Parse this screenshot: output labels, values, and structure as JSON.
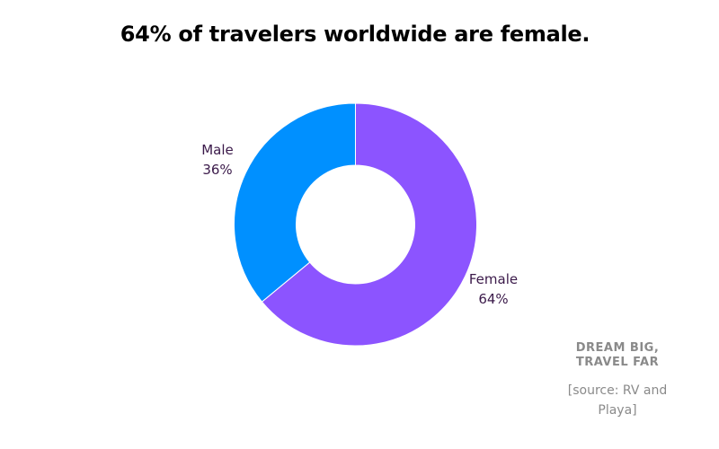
{
  "title": "64% of travelers worldwide are female.",
  "chart_data": {
    "type": "pie",
    "variant": "donut",
    "title": "64% of travelers worldwide are female.",
    "categories": [
      "Male",
      "Female"
    ],
    "values": [
      36,
      64
    ],
    "unit": "%",
    "colors": [
      "#0090FF",
      "#8C54FF"
    ],
    "labels": [
      {
        "name": "Male",
        "value": "36%"
      },
      {
        "name": "Female",
        "value": "64%"
      }
    ],
    "start_angle_deg": 0,
    "direction": "clockwise starting at 12 o'clock with Female",
    "legend": "none (direct labels)"
  },
  "labels": {
    "male": {
      "name": "Male",
      "value": "36%"
    },
    "female": {
      "name": "Female",
      "value": "64%"
    }
  },
  "footer": {
    "brand_line1": "DREAM BIG,",
    "brand_line2": "TRAVEL FAR",
    "source_line1": "[source: RV and",
    "source_line2": "Playa]"
  }
}
